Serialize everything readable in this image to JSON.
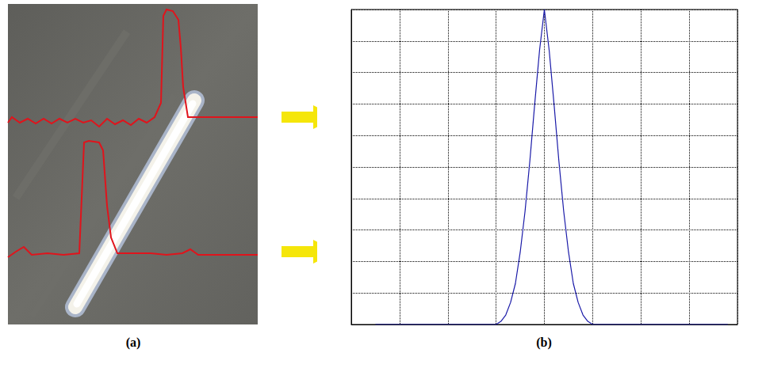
{
  "panel_labels": [
    "(a)",
    "(b)"
  ],
  "chart_data": {
    "type": "line",
    "x": [
      0.5,
      3.0,
      3.1,
      3.2,
      3.3,
      3.4,
      3.5,
      3.6,
      3.7,
      3.8,
      3.9,
      4.0,
      4.1,
      4.2,
      4.3,
      4.4,
      4.5,
      4.6,
      4.7,
      4.8,
      4.9,
      5.0,
      7.8
    ],
    "values": [
      0,
      0,
      0.01,
      0.03,
      0.07,
      0.13,
      0.23,
      0.36,
      0.52,
      0.7,
      0.87,
      1.0,
      0.87,
      0.7,
      0.52,
      0.36,
      0.23,
      0.13,
      0.07,
      0.03,
      0.01,
      0,
      0
    ],
    "color": "#1a1aa8",
    "marker": "none",
    "line_style": "solid",
    "xlim": [
      0,
      8
    ],
    "xticks": [
      0,
      1,
      2,
      3,
      4,
      5,
      6,
      7,
      8
    ],
    "ylim": [
      0,
      1
    ],
    "yticks": [
      0,
      0.1,
      0.2,
      0.3,
      0.4,
      0.5,
      0.6,
      0.7,
      0.8,
      0.9,
      1
    ],
    "grid": true,
    "tick_labels": false
  }
}
